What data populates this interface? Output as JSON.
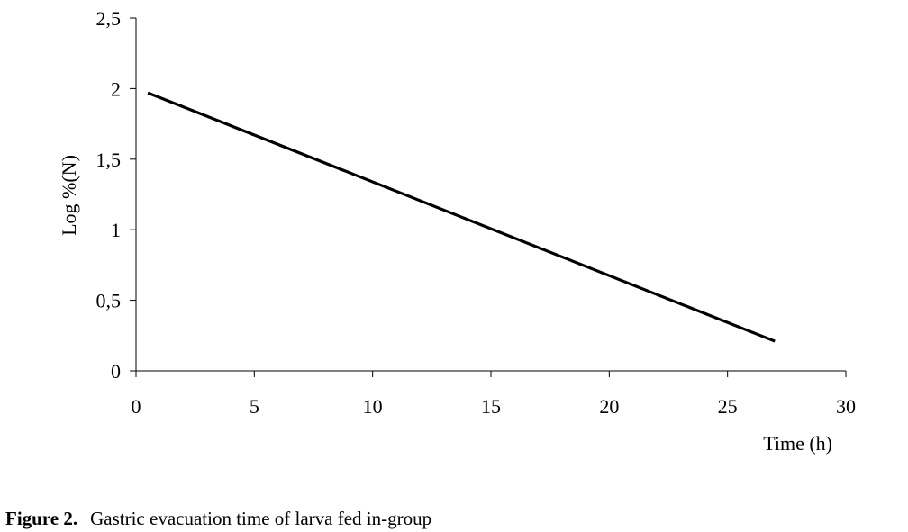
{
  "chart_data": {
    "type": "line",
    "xlabel": "Time (h)",
    "ylabel": "Log %(N)",
    "xlim": [
      0,
      30
    ],
    "ylim": [
      0,
      2.5
    ],
    "xticks": [
      0,
      5,
      10,
      15,
      20,
      25,
      30
    ],
    "yticks": [
      0,
      0.5,
      1,
      1.5,
      2,
      2.5
    ],
    "xtick_labels": [
      "0",
      "5",
      "10",
      "15",
      "20",
      "25",
      "30"
    ],
    "ytick_labels": [
      "0",
      "0,5",
      "1",
      "1,5",
      "2",
      "2,5"
    ],
    "grid": false,
    "line_color": "#000000",
    "series": [
      {
        "x": [
          0.5,
          27
        ],
        "y": [
          1.97,
          0.21
        ]
      }
    ]
  },
  "caption": {
    "label": "Figure 2.",
    "text": "Gastric evacuation time of larva fed in-group"
  }
}
